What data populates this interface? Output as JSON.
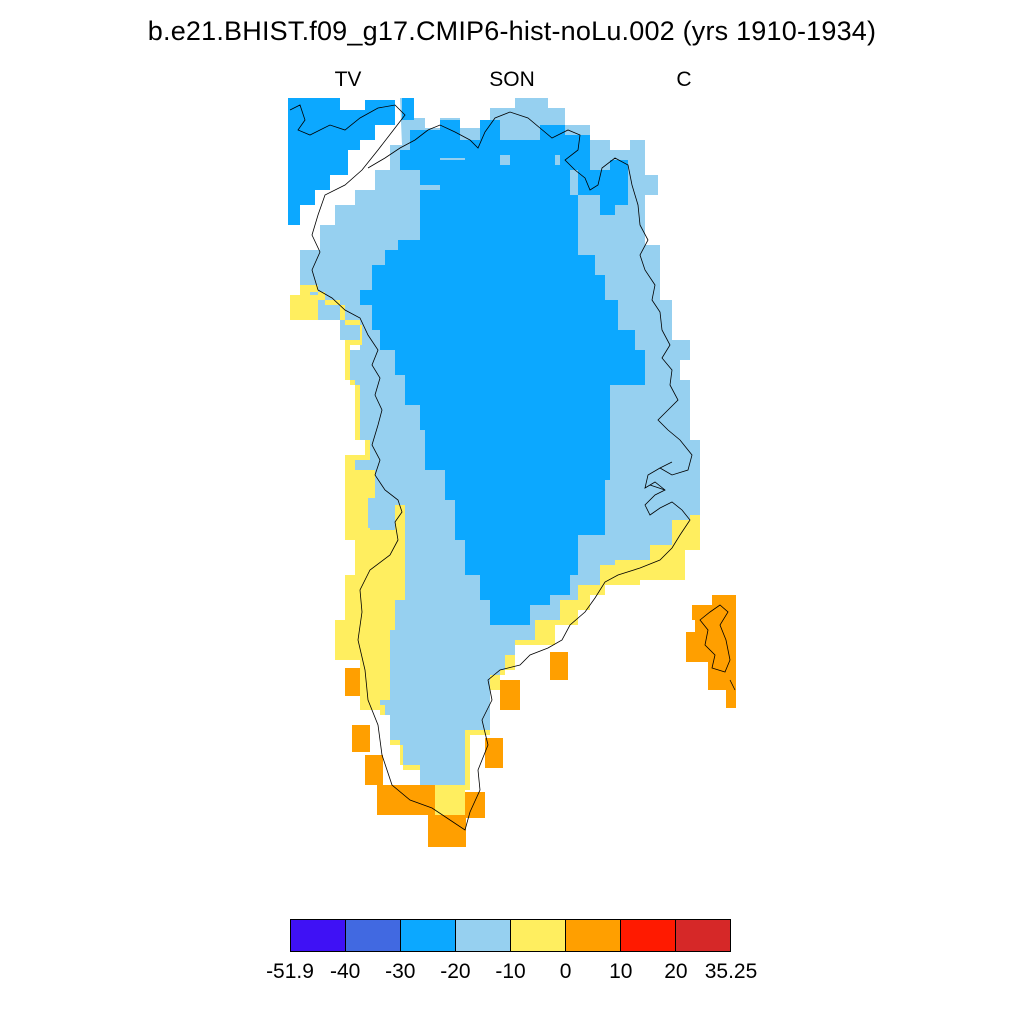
{
  "title": "b.e21.BHIST.f09_g17.CMIP6-hist-noLu.002 (yrs 1910-1934)",
  "subtitles": {
    "left": "TV",
    "center": "SON",
    "right": "C"
  },
  "colorbar": {
    "colors": [
      "#3f11f5",
      "#4169e1",
      "#0ca8ff",
      "#96d0f0",
      "#ffee5f",
      "#ff9f00",
      "#ff1a00",
      "#d62828"
    ],
    "labels": [
      "-51.9",
      "-40",
      "-30",
      "-20",
      "-10",
      "0",
      "10",
      "20",
      "35.25"
    ]
  },
  "map_colors": {
    "cat_neg30_neg20": "#0ca8ff",
    "cat_neg20_neg10": "#96d0f0",
    "cat_neg10_0": "#ffee5f",
    "cat_0_10": "#ff9f00",
    "coastline": "#000000"
  }
}
